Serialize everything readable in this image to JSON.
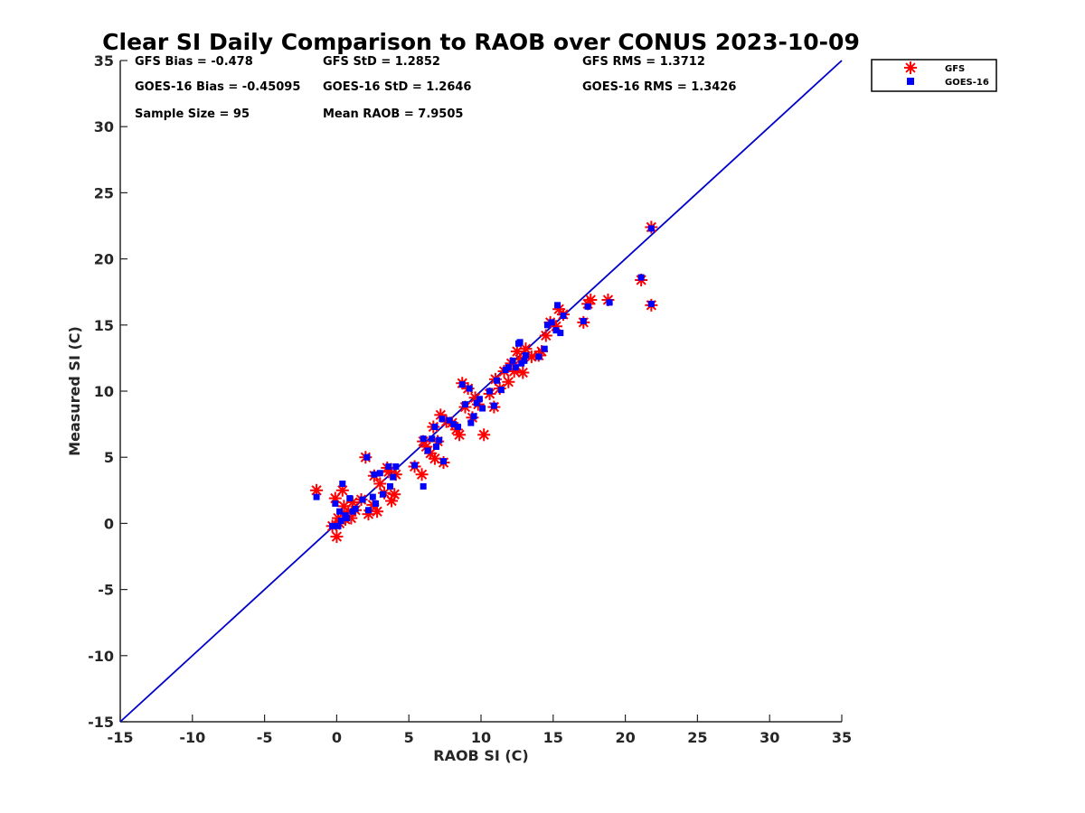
{
  "chart_data": {
    "type": "scatter",
    "title": "Clear SI Daily Comparison to RAOB over CONUS 2023-10-09",
    "xlabel": "RAOB SI (C)",
    "ylabel": "Measured SI (C)",
    "xlim": [
      -15,
      35
    ],
    "ylim": [
      -15,
      35
    ],
    "xticks": [
      "-15",
      "-10",
      "-5",
      "0",
      "5",
      "10",
      "15",
      "20",
      "25",
      "30",
      "35"
    ],
    "yticks": [
      "-15",
      "-10",
      "-5",
      "0",
      "5",
      "10",
      "15",
      "20",
      "25",
      "30",
      "35"
    ],
    "grid": false,
    "legend_position": "outside-top-right",
    "reference_line": {
      "x": [
        -15,
        35
      ],
      "y": [
        -15,
        35
      ],
      "color": "#0000cc"
    },
    "stats": {
      "gfs_bias": "GFS Bias = -0.478",
      "goes_bias": "GOES-16 Bias = -0.45095",
      "sample_size": "Sample Size = 95",
      "gfs_std": "GFS StD = 1.2852",
      "goes_std": "GOES-16 StD = 1.2646",
      "mean_raob": "Mean RAOB = 7.9505",
      "gfs_rms": "GFS RMS = 1.3712",
      "goes_rms": "GOES-16 RMS = 1.3426"
    },
    "series": [
      {
        "name": "GFS",
        "marker": "asterisk",
        "color": "#ff0000",
        "points": [
          [
            -1.4,
            2.5
          ],
          [
            -0.3,
            -0.2
          ],
          [
            -0.1,
            1.9
          ],
          [
            0.0,
            -1.0
          ],
          [
            0.1,
            0.4
          ],
          [
            0.2,
            0.0
          ],
          [
            0.4,
            2.5
          ],
          [
            0.5,
            1.3
          ],
          [
            0.6,
            0.3
          ],
          [
            0.8,
            0.9
          ],
          [
            1.0,
            0.4
          ],
          [
            1.3,
            1.0
          ],
          [
            1.7,
            1.8
          ],
          [
            2.0,
            5.0
          ],
          [
            2.2,
            0.7
          ],
          [
            2.5,
            1.4
          ],
          [
            2.6,
            3.6
          ],
          [
            2.8,
            0.9
          ],
          [
            3.0,
            3.0
          ],
          [
            3.3,
            2.3
          ],
          [
            3.6,
            3.9
          ],
          [
            3.8,
            1.7
          ],
          [
            4.0,
            2.2
          ],
          [
            4.1,
            3.7
          ],
          [
            5.4,
            4.3
          ],
          [
            5.9,
            3.7
          ],
          [
            6.0,
            6.2
          ],
          [
            6.2,
            5.8
          ],
          [
            6.5,
            5.3
          ],
          [
            6.7,
            7.3
          ],
          [
            6.8,
            4.9
          ],
          [
            7.0,
            6.2
          ],
          [
            7.2,
            8.2
          ],
          [
            7.4,
            4.6
          ],
          [
            7.6,
            7.7
          ],
          [
            8.0,
            7.6
          ],
          [
            8.3,
            7.1
          ],
          [
            8.5,
            6.7
          ],
          [
            8.7,
            10.6
          ],
          [
            8.9,
            8.8
          ],
          [
            9.1,
            10.2
          ],
          [
            9.4,
            8.0
          ],
          [
            9.8,
            9.0
          ],
          [
            10.2,
            6.7
          ],
          [
            10.6,
            9.8
          ],
          [
            10.9,
            8.8
          ],
          [
            11.0,
            10.9
          ],
          [
            11.3,
            10.2
          ],
          [
            11.6,
            11.5
          ],
          [
            11.9,
            10.7
          ],
          [
            12.1,
            12.1
          ],
          [
            12.3,
            11.5
          ],
          [
            12.5,
            13.0
          ],
          [
            12.7,
            12.4
          ],
          [
            12.9,
            11.4
          ],
          [
            13.1,
            13.2
          ],
          [
            13.5,
            12.6
          ],
          [
            14.0,
            12.7
          ],
          [
            14.2,
            13.0
          ],
          [
            14.5,
            14.2
          ],
          [
            14.8,
            15.2
          ],
          [
            15.2,
            14.9
          ],
          [
            15.4,
            16.2
          ],
          [
            15.7,
            15.8
          ],
          [
            17.1,
            15.2
          ],
          [
            17.4,
            16.6
          ],
          [
            17.6,
            16.9
          ],
          [
            18.8,
            16.9
          ],
          [
            21.1,
            18.4
          ],
          [
            21.8,
            22.4
          ],
          [
            21.8,
            16.5
          ],
          [
            9.6,
            9.5
          ],
          [
            1.1,
            1.6
          ],
          [
            3.5,
            4.2
          ]
        ]
      },
      {
        "name": "GOES-16",
        "marker": "square",
        "color": "#0000ff",
        "points": [
          [
            -1.4,
            2.0
          ],
          [
            -0.3,
            -0.2
          ],
          [
            -0.1,
            1.5
          ],
          [
            0.1,
            -0.2
          ],
          [
            0.2,
            0.9
          ],
          [
            0.3,
            0.2
          ],
          [
            0.4,
            3.0
          ],
          [
            0.6,
            0.6
          ],
          [
            0.7,
            0.4
          ],
          [
            0.9,
            1.9
          ],
          [
            1.1,
            0.9
          ],
          [
            1.3,
            1.1
          ],
          [
            1.8,
            1.8
          ],
          [
            2.1,
            5.0
          ],
          [
            2.2,
            1.0
          ],
          [
            2.5,
            2.0
          ],
          [
            2.6,
            3.7
          ],
          [
            2.7,
            1.5
          ],
          [
            3.0,
            3.8
          ],
          [
            3.2,
            2.2
          ],
          [
            3.6,
            4.3
          ],
          [
            3.7,
            2.8
          ],
          [
            3.9,
            3.5
          ],
          [
            4.1,
            4.3
          ],
          [
            5.4,
            4.4
          ],
          [
            6.0,
            2.8
          ],
          [
            6.0,
            6.4
          ],
          [
            6.3,
            5.5
          ],
          [
            6.6,
            6.4
          ],
          [
            6.8,
            7.3
          ],
          [
            6.9,
            5.8
          ],
          [
            7.1,
            6.3
          ],
          [
            7.3,
            7.9
          ],
          [
            7.4,
            4.7
          ],
          [
            7.8,
            7.8
          ],
          [
            8.1,
            7.5
          ],
          [
            8.4,
            7.3
          ],
          [
            8.7,
            10.5
          ],
          [
            8.9,
            9.0
          ],
          [
            9.2,
            10.2
          ],
          [
            9.3,
            7.6
          ],
          [
            9.5,
            8.1
          ],
          [
            9.9,
            9.4
          ],
          [
            10.1,
            8.7
          ],
          [
            10.6,
            10.0
          ],
          [
            10.9,
            8.9
          ],
          [
            11.1,
            10.8
          ],
          [
            11.4,
            10.1
          ],
          [
            11.7,
            11.6
          ],
          [
            11.9,
            11.8
          ],
          [
            12.2,
            12.3
          ],
          [
            12.4,
            11.8
          ],
          [
            12.6,
            13.6
          ],
          [
            12.8,
            12.1
          ],
          [
            13.0,
            12.3
          ],
          [
            13.1,
            12.7
          ],
          [
            14.0,
            12.6
          ],
          [
            14.4,
            13.2
          ],
          [
            14.6,
            15.0
          ],
          [
            14.9,
            15.2
          ],
          [
            15.2,
            14.6
          ],
          [
            15.3,
            16.5
          ],
          [
            15.5,
            14.4
          ],
          [
            15.7,
            15.7
          ],
          [
            17.1,
            15.3
          ],
          [
            17.4,
            16.4
          ],
          [
            18.9,
            16.7
          ],
          [
            21.1,
            18.6
          ],
          [
            21.8,
            22.3
          ],
          [
            21.8,
            16.6
          ],
          [
            9.7,
            9.1
          ],
          [
            12.7,
            13.7
          ]
        ]
      }
    ]
  }
}
